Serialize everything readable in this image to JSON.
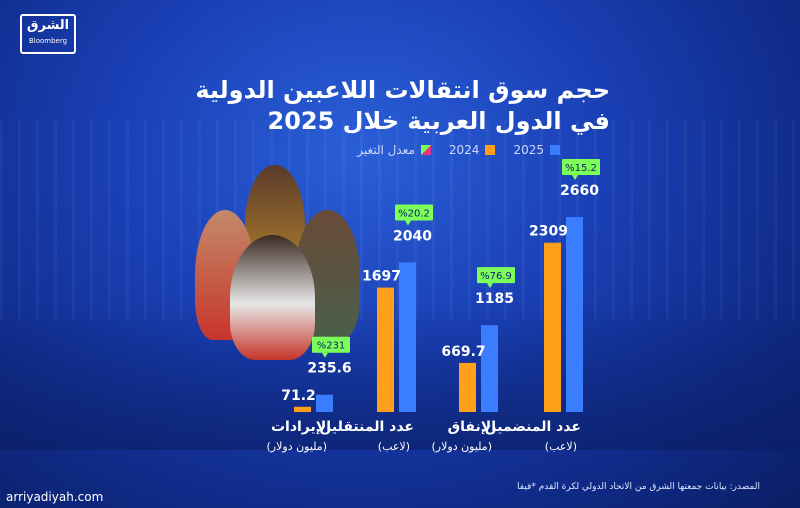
{
  "logo": {
    "arabic": "الشرق",
    "english": "Bloomberg"
  },
  "site": "arriyadiyah.com",
  "source": "المصدر: بيانات جمعتها الشرق من الاتحاد الدولي لكرة القدم *فيفا",
  "colors": {
    "2025": "#3b7dff",
    "2024": "#ff9f1a",
    "change_badge": "#7dff5a"
  },
  "chart_data": {
    "type": "bar",
    "title": "حجم سوق انتقالات اللاعبين الدولية في الدول العربية خلال 2025",
    "legend": [
      "2025",
      "2024",
      "معدل التغير"
    ],
    "categories": [
      {
        "label": "عدد المنضمين",
        "unit": "(لاعب)"
      },
      {
        "label": "الإنفاق",
        "unit": "(مليون دولار)"
      },
      {
        "label": "عدد المنتقلين",
        "unit": "(لاعب)"
      },
      {
        "label": "الإيرادات",
        "unit": "(مليون دولار)"
      }
    ],
    "series": [
      {
        "name": "2024",
        "values": [
          2309,
          669.7,
          1697,
          71.2
        ],
        "labels": [
          "2309",
          "669.7",
          "1697",
          "71.2"
        ]
      },
      {
        "name": "2025",
        "values": [
          2660,
          1185,
          2040,
          235.6
        ],
        "labels": [
          "2660",
          "1185",
          "2040",
          "235.6"
        ]
      }
    ],
    "change": [
      "%15.2",
      "%76.9",
      "%20.2",
      "%231"
    ]
  }
}
